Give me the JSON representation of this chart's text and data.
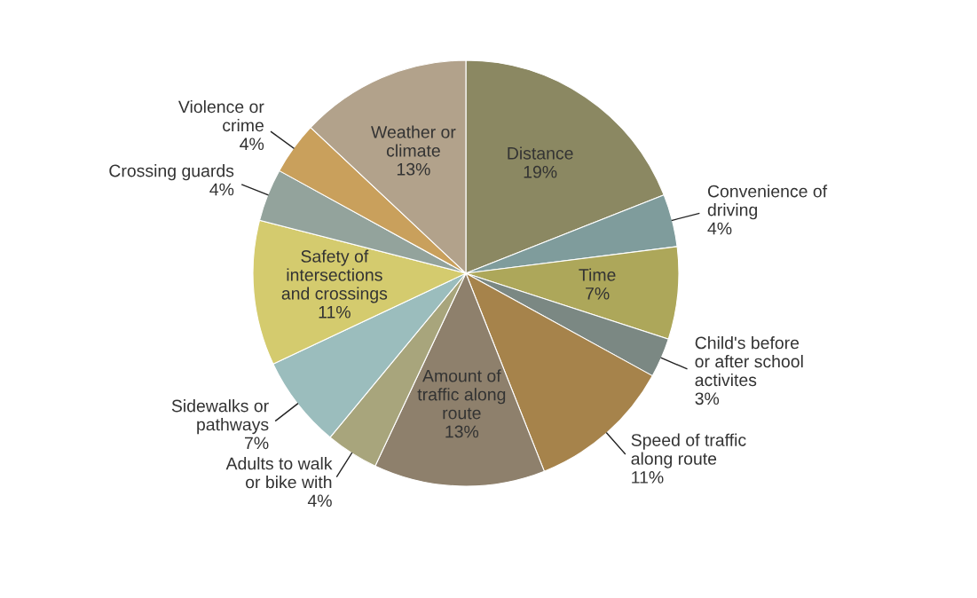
{
  "chart_data": {
    "type": "pie",
    "categories": [
      "Distance",
      "Convenience of driving",
      "Time",
      "Child's before or after school activites",
      "Speed of traffic along route",
      "Amount of traffic along route",
      "Adults to walk or bike with",
      "Sidewalks or pathways",
      "Safety of intersections and crossings",
      "Crossing guards",
      "Violence or crime",
      "Weather or climate"
    ],
    "values": [
      19,
      4,
      7,
      3,
      11,
      13,
      4,
      7,
      11,
      4,
      4,
      13
    ],
    "colors": [
      "#8b8862",
      "#7f9c9c",
      "#ada75a",
      "#7b8883",
      "#a6834b",
      "#8e806c",
      "#a8a57c",
      "#9bbdbd",
      "#d4cb6e",
      "#93a39c",
      "#c9a05c",
      "#b2a28b"
    ],
    "value_labels": [
      "19%",
      "4%",
      "7%",
      "3%",
      "11%",
      "13%",
      "4%",
      "7%",
      "11%",
      "4%",
      "4%",
      "13%"
    ]
  }
}
